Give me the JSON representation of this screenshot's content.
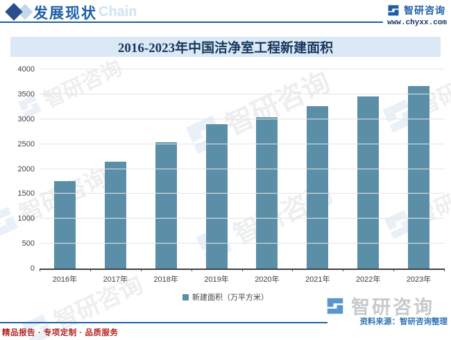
{
  "header": {
    "section_title": "发展现状",
    "watermark_text": "Chain",
    "brand_name": "智研咨询",
    "brand_url": "www.chyxx.com"
  },
  "chart_data": {
    "type": "bar",
    "title": "2016-2023年中国洁净室工程新建面积",
    "categories": [
      "2016年",
      "2017年",
      "2018年",
      "2019年",
      "2020年",
      "2021年",
      "2022年",
      "2023年"
    ],
    "series": [
      {
        "name": "新建面积（万平方米）",
        "values": [
          1760,
          2140,
          2530,
          2900,
          3040,
          3260,
          3460,
          3670
        ]
      }
    ],
    "xlabel": "",
    "ylabel": "",
    "ylim": [
      0,
      4000
    ],
    "yticks": [
      0,
      500,
      1000,
      1500,
      2000,
      2500,
      3000,
      3500,
      4000
    ],
    "grid": true,
    "legend_position": "bottom"
  },
  "watermark": {
    "brand": "智研咨询"
  },
  "footer": {
    "source_label": "资料来源：智研咨询整理",
    "tagline": "精品报告 · 专项定制 · 品质服务",
    "brand_name": "智研咨询"
  },
  "colors": {
    "accent_blue": "#1d5fa5",
    "title_navy": "#16365c",
    "bar_fill": "#5b8fa7",
    "band_bg": "#dbe9f6",
    "grid_line": "#e4e4e4",
    "axis_line": "#404040",
    "tagline_red": "#b22222",
    "source_blue": "#2e74b5"
  }
}
